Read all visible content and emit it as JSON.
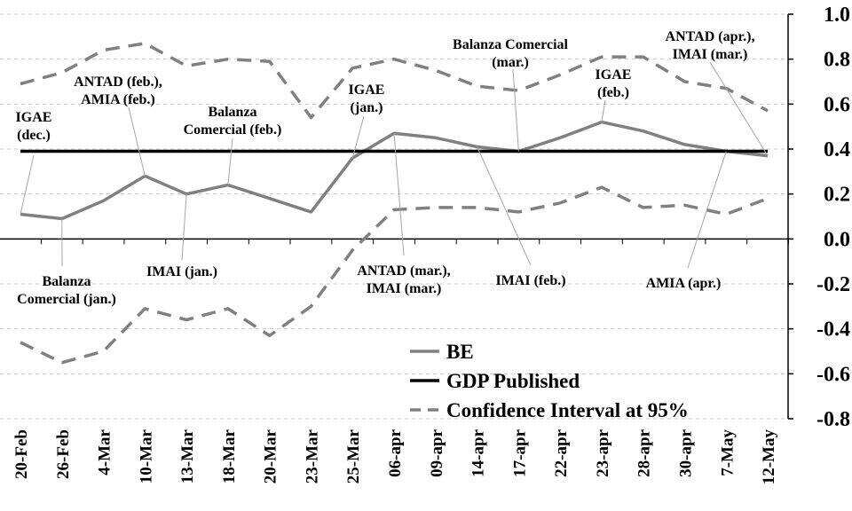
{
  "chart_data": {
    "type": "line",
    "title": "",
    "xlabel": "",
    "ylabel": "",
    "categories": [
      "20-Feb",
      "26-Feb",
      "4-Mar",
      "10-Mar",
      "13-Mar",
      "18-Mar",
      "20-Mar",
      "23-Mar",
      "25-Mar",
      "06-apr",
      "09-apr",
      "14-apr",
      "17-apr",
      "22-apr",
      "23-apr",
      "28-apr",
      "30-apr",
      "7-May",
      "12-May"
    ],
    "ylim": [
      -0.8,
      1.0
    ],
    "yticks": [
      "1.0",
      "0.8",
      "0.6",
      "0.4",
      "0.2",
      "0.0",
      "-0.2",
      "-0.4",
      "-0.6",
      "-0.8"
    ],
    "grid": "horizontal-dashed",
    "legend_position": "bottom-center",
    "series": [
      {
        "name": "BE",
        "style": "solid",
        "color": "#808080",
        "values": [
          0.11,
          0.09,
          0.17,
          0.28,
          0.2,
          0.24,
          0.18,
          0.12,
          0.36,
          0.47,
          0.45,
          0.41,
          0.39,
          0.45,
          0.52,
          0.48,
          0.42,
          0.39,
          0.37
        ]
      },
      {
        "name": "GDP Published",
        "style": "solid",
        "color": "#000000",
        "values": [
          0.39,
          0.39,
          0.39,
          0.39,
          0.39,
          0.39,
          0.39,
          0.39,
          0.39,
          0.39,
          0.39,
          0.39,
          0.39,
          0.39,
          0.39,
          0.39,
          0.39,
          0.39,
          0.39
        ]
      },
      {
        "name": "Confidence Interval at 95%",
        "style": "dashed",
        "color": "#808080",
        "legend": true,
        "values": [
          0.69,
          0.74,
          0.84,
          0.87,
          0.77,
          0.8,
          0.79,
          0.54,
          0.76,
          0.8,
          0.75,
          0.68,
          0.66,
          0.73,
          0.81,
          0.81,
          0.7,
          0.67,
          0.57
        ]
      },
      {
        "name": "",
        "style": "dashed",
        "color": "#808080",
        "legend": false,
        "values": [
          -0.46,
          -0.55,
          -0.5,
          -0.31,
          -0.36,
          -0.31,
          -0.43,
          -0.3,
          -0.05,
          0.13,
          0.14,
          0.14,
          0.12,
          0.16,
          0.23,
          0.14,
          0.15,
          0.11,
          0.18
        ]
      }
    ],
    "annotations": [
      {
        "lines": [
          "IGAE",
          "(dec.)"
        ],
        "point_index": 0
      },
      {
        "lines": [
          "Balanza",
          "Comercial (jan.)"
        ],
        "point_index": 1
      },
      {
        "lines": [
          "ANTAD (feb.),",
          "AMIA (feb.)"
        ],
        "point_index": 3
      },
      {
        "lines": [
          "IMAI (jan.)"
        ],
        "point_index": 4
      },
      {
        "lines": [
          "Balanza",
          "Comercial (feb.)"
        ],
        "point_index": 5
      },
      {
        "lines": [
          "IGAE",
          "(jan.)"
        ],
        "point_index": 8
      },
      {
        "lines": [
          "ANTAD (mar.),",
          "IMAI (mar.)"
        ],
        "point_index": 9
      },
      {
        "lines": [
          "Balanza Comercial",
          "(mar.)"
        ],
        "point_index": 12
      },
      {
        "lines": [
          "IMAI (feb.)"
        ],
        "point_index": 11
      },
      {
        "lines": [
          "IGAE",
          "(feb.)"
        ],
        "point_index": 14
      },
      {
        "lines": [
          "ANTAD (apr.),",
          "IMAI (mar.)"
        ],
        "point_index": 18
      },
      {
        "lines": [
          "AMIA (apr.)"
        ],
        "point_index": 17
      }
    ]
  }
}
